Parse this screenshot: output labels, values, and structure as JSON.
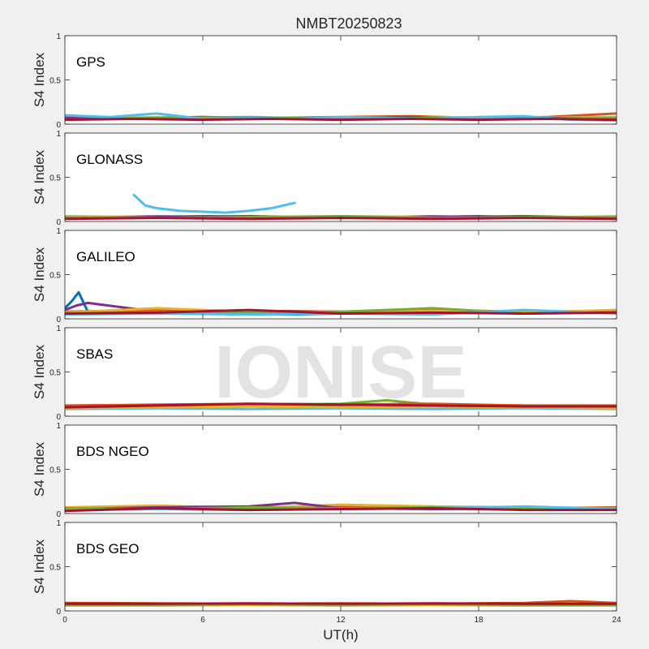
{
  "figure": {
    "title": "NMBT20250823",
    "xlabel": "UT(h)",
    "watermark": "IONISE",
    "background_color": "#f0f0f0",
    "axes_color": "#ffffff"
  },
  "chart_data": [
    {
      "type": "line",
      "panel_label": "GPS",
      "ylabel": "S4 Index",
      "xlim": [
        0,
        24
      ],
      "ylim": [
        0,
        1
      ],
      "xticks": [
        0,
        6,
        12,
        18,
        24
      ],
      "yticks": [
        0,
        0.5,
        1
      ],
      "grid": false,
      "series": [
        {
          "color": "#0072bd",
          "x": [
            0,
            2,
            4,
            6,
            8,
            10,
            12,
            14,
            16,
            18,
            20,
            22,
            24
          ],
          "y": [
            0.08,
            0.07,
            0.06,
            0.07,
            0.06,
            0.07,
            0.06,
            0.07,
            0.06,
            0.06,
            0.07,
            0.06,
            0.07
          ]
        },
        {
          "color": "#d95319",
          "x": [
            0,
            3,
            6,
            9,
            12,
            15,
            18,
            21,
            24
          ],
          "y": [
            0.09,
            0.07,
            0.08,
            0.07,
            0.08,
            0.09,
            0.07,
            0.08,
            0.12
          ]
        },
        {
          "color": "#edb120",
          "x": [
            0,
            4,
            8,
            12,
            16,
            20,
            24
          ],
          "y": [
            0.06,
            0.08,
            0.07,
            0.06,
            0.08,
            0.07,
            0.08
          ]
        },
        {
          "color": "#7e2f8e",
          "x": [
            0,
            3,
            6,
            9,
            12,
            15,
            18,
            21,
            24
          ],
          "y": [
            0.07,
            0.06,
            0.08,
            0.07,
            0.06,
            0.08,
            0.06,
            0.07,
            0.06
          ]
        },
        {
          "color": "#77ac30",
          "x": [
            0,
            4,
            8,
            12,
            16,
            20,
            24
          ],
          "y": [
            0.05,
            0.07,
            0.08,
            0.06,
            0.07,
            0.06,
            0.07
          ]
        },
        {
          "color": "#4dbeee",
          "x": [
            0,
            2,
            4,
            6,
            8,
            10,
            12,
            14,
            16,
            18,
            20,
            22,
            24
          ],
          "y": [
            0.1,
            0.08,
            0.12,
            0.06,
            0.07,
            0.06,
            0.08,
            0.07,
            0.06,
            0.08,
            0.09,
            0.05,
            0.04
          ]
        },
        {
          "color": "#a2142f",
          "x": [
            0,
            3,
            6,
            9,
            12,
            15,
            18,
            21,
            24
          ],
          "y": [
            0.05,
            0.06,
            0.05,
            0.06,
            0.05,
            0.06,
            0.05,
            0.06,
            0.05
          ]
        }
      ]
    },
    {
      "type": "line",
      "panel_label": "GLONASS",
      "ylabel": "S4 Index",
      "xlim": [
        0,
        24
      ],
      "ylim": [
        0,
        1
      ],
      "xticks": [
        0,
        6,
        12,
        18,
        24
      ],
      "yticks": [
        0,
        0.5,
        1
      ],
      "grid": false,
      "series": [
        {
          "color": "#4dbeee",
          "x": [
            3,
            3.5,
            4,
            5,
            6,
            7,
            8,
            9,
            10
          ],
          "y": [
            0.3,
            0.18,
            0.15,
            0.12,
            0.11,
            0.1,
            0.12,
            0.15,
            0.21
          ]
        },
        {
          "color": "#0072bd",
          "x": [
            0,
            3,
            6,
            9,
            12,
            15,
            18,
            21,
            24
          ],
          "y": [
            0.05,
            0.05,
            0.06,
            0.05,
            0.04,
            0.05,
            0.06,
            0.04,
            0.05
          ]
        },
        {
          "color": "#d95319",
          "x": [
            0,
            4,
            8,
            12,
            16,
            20,
            24
          ],
          "y": [
            0.04,
            0.06,
            0.05,
            0.04,
            0.06,
            0.04,
            0.05
          ]
        },
        {
          "color": "#edb120",
          "x": [
            0,
            4,
            8,
            12,
            16,
            20,
            24
          ],
          "y": [
            0.06,
            0.05,
            0.04,
            0.06,
            0.05,
            0.04,
            0.06
          ]
        },
        {
          "color": "#7e2f8e",
          "x": [
            0,
            4,
            8,
            12,
            16,
            20,
            24
          ],
          "y": [
            0.04,
            0.05,
            0.06,
            0.04,
            0.05,
            0.06,
            0.04
          ]
        },
        {
          "color": "#77ac30",
          "x": [
            0,
            4,
            8,
            12,
            16,
            20,
            24
          ],
          "y": [
            0.05,
            0.04,
            0.05,
            0.06,
            0.04,
            0.05,
            0.05
          ]
        },
        {
          "color": "#a2142f",
          "x": [
            0,
            4,
            8,
            12,
            16,
            20,
            24
          ],
          "y": [
            0.03,
            0.04,
            0.03,
            0.04,
            0.03,
            0.04,
            0.03
          ]
        }
      ]
    },
    {
      "type": "line",
      "panel_label": "GALILEO",
      "ylabel": "S4 Index",
      "xlim": [
        0,
        24
      ],
      "ylim": [
        0,
        1
      ],
      "xticks": [
        0,
        6,
        12,
        18,
        24
      ],
      "yticks": [
        0,
        0.5,
        1
      ],
      "grid": false,
      "series": [
        {
          "color": "#0072bd",
          "x": [
            0,
            0.3,
            0.6,
            1,
            2,
            4,
            6,
            8,
            10,
            12,
            14,
            16,
            18,
            20,
            22,
            24
          ],
          "y": [
            0.12,
            0.2,
            0.3,
            0.08,
            0.07,
            0.06,
            0.07,
            0.06,
            0.05,
            0.06,
            0.07,
            0.06,
            0.07,
            0.06,
            0.07,
            0.07
          ]
        },
        {
          "color": "#7e2f8e",
          "x": [
            0,
            0.5,
            1,
            4,
            8,
            12,
            16,
            20,
            24
          ],
          "y": [
            0.1,
            0.15,
            0.18,
            0.08,
            0.09,
            0.08,
            0.07,
            0.08,
            0.07
          ]
        },
        {
          "color": "#d95319",
          "x": [
            0,
            4,
            8,
            12,
            16,
            20,
            24
          ],
          "y": [
            0.08,
            0.1,
            0.09,
            0.08,
            0.1,
            0.08,
            0.09
          ]
        },
        {
          "color": "#edb120",
          "x": [
            0,
            4,
            8,
            12,
            16,
            20,
            24
          ],
          "y": [
            0.07,
            0.12,
            0.08,
            0.07,
            0.09,
            0.07,
            0.1
          ]
        },
        {
          "color": "#77ac30",
          "x": [
            0,
            4,
            8,
            12,
            16,
            20,
            24
          ],
          "y": [
            0.06,
            0.08,
            0.07,
            0.08,
            0.12,
            0.06,
            0.08
          ]
        },
        {
          "color": "#4dbeee",
          "x": [
            0,
            4,
            8,
            12,
            16,
            20,
            24
          ],
          "y": [
            0.05,
            0.06,
            0.05,
            0.06,
            0.05,
            0.1,
            0.06
          ]
        },
        {
          "color": "#a2142f",
          "x": [
            0,
            4,
            8,
            12,
            16,
            20,
            24
          ],
          "y": [
            0.06,
            0.07,
            0.1,
            0.06,
            0.07,
            0.06,
            0.07
          ]
        }
      ]
    },
    {
      "type": "line",
      "panel_label": "SBAS",
      "ylabel": "S4 Index",
      "xlim": [
        0,
        24
      ],
      "ylim": [
        0,
        1
      ],
      "xticks": [
        0,
        6,
        12,
        18,
        24
      ],
      "yticks": [
        0,
        0.5,
        1
      ],
      "grid": false,
      "series": [
        {
          "color": "#4dbeee",
          "x": [
            0,
            4,
            8,
            12,
            16,
            20,
            24
          ],
          "y": [
            0.08,
            0.09,
            0.08,
            0.09,
            0.08,
            0.09,
            0.08
          ]
        },
        {
          "color": "#0072bd",
          "x": [
            0,
            4,
            8,
            12,
            16,
            20,
            24
          ],
          "y": [
            0.1,
            0.11,
            0.12,
            0.11,
            0.12,
            0.11,
            0.1
          ]
        },
        {
          "color": "#77ac30",
          "x": [
            0,
            4,
            8,
            12,
            14,
            16,
            20,
            24
          ],
          "y": [
            0.11,
            0.12,
            0.13,
            0.14,
            0.18,
            0.13,
            0.12,
            0.11
          ]
        },
        {
          "color": "#edb120",
          "x": [
            0,
            4,
            8,
            12,
            16,
            20,
            24
          ],
          "y": [
            0.09,
            0.1,
            0.11,
            0.1,
            0.11,
            0.1,
            0.09
          ]
        },
        {
          "color": "#d95319",
          "x": [
            0,
            4,
            8,
            12,
            16,
            20,
            24
          ],
          "y": [
            0.12,
            0.13,
            0.14,
            0.13,
            0.14,
            0.12,
            0.12
          ]
        },
        {
          "color": "#a2142f",
          "x": [
            0,
            4,
            8,
            12,
            16,
            20,
            24
          ],
          "y": [
            0.1,
            0.12,
            0.14,
            0.13,
            0.12,
            0.11,
            0.11
          ]
        }
      ]
    },
    {
      "type": "line",
      "panel_label": "BDS NGEO",
      "ylabel": "S4 Index",
      "xlim": [
        0,
        24
      ],
      "ylim": [
        0,
        1
      ],
      "xticks": [
        0,
        6,
        12,
        18,
        24
      ],
      "yticks": [
        0,
        0.5,
        1
      ],
      "grid": false,
      "series": [
        {
          "color": "#0072bd",
          "x": [
            0,
            4,
            8,
            12,
            16,
            20,
            24
          ],
          "y": [
            0.05,
            0.06,
            0.05,
            0.06,
            0.05,
            0.06,
            0.05
          ]
        },
        {
          "color": "#d95319",
          "x": [
            0,
            4,
            8,
            12,
            16,
            20,
            24
          ],
          "y": [
            0.06,
            0.08,
            0.07,
            0.08,
            0.07,
            0.06,
            0.07
          ]
        },
        {
          "color": "#edb120",
          "x": [
            0,
            4,
            8,
            12,
            16,
            20,
            24
          ],
          "y": [
            0.07,
            0.09,
            0.06,
            0.1,
            0.08,
            0.07,
            0.06
          ]
        },
        {
          "color": "#7e2f8e",
          "x": [
            0,
            4,
            8,
            10,
            12,
            16,
            20,
            24
          ],
          "y": [
            0.05,
            0.07,
            0.08,
            0.12,
            0.06,
            0.05,
            0.06,
            0.05
          ]
        },
        {
          "color": "#77ac30",
          "x": [
            0,
            4,
            8,
            12,
            16,
            20,
            24
          ],
          "y": [
            0.06,
            0.05,
            0.07,
            0.06,
            0.07,
            0.05,
            0.06
          ]
        },
        {
          "color": "#4dbeee",
          "x": [
            0,
            4,
            8,
            12,
            16,
            20,
            24
          ],
          "y": [
            0.04,
            0.05,
            0.04,
            0.05,
            0.06,
            0.08,
            0.05
          ]
        },
        {
          "color": "#a2142f",
          "x": [
            0,
            4,
            8,
            12,
            16,
            20,
            24
          ],
          "y": [
            0.03,
            0.06,
            0.04,
            0.05,
            0.06,
            0.04,
            0.04
          ]
        }
      ]
    },
    {
      "type": "line",
      "panel_label": "BDS GEO",
      "ylabel": "S4 Index",
      "xlim": [
        0,
        24
      ],
      "ylim": [
        0,
        1
      ],
      "xticks": [
        0,
        6,
        12,
        18,
        24
      ],
      "yticks": [
        0,
        0.5,
        1
      ],
      "grid": false,
      "series": [
        {
          "color": "#edb120",
          "x": [
            0,
            4,
            8,
            12,
            16,
            20,
            24
          ],
          "y": [
            0.06,
            0.06,
            0.065,
            0.06,
            0.065,
            0.06,
            0.06
          ]
        },
        {
          "color": "#77ac30",
          "x": [
            0,
            4,
            8,
            12,
            16,
            20,
            24
          ],
          "y": [
            0.07,
            0.07,
            0.075,
            0.07,
            0.075,
            0.07,
            0.07
          ]
        },
        {
          "color": "#d95319",
          "x": [
            0,
            4,
            8,
            12,
            16,
            20,
            22,
            24
          ],
          "y": [
            0.09,
            0.085,
            0.08,
            0.085,
            0.08,
            0.09,
            0.11,
            0.09
          ]
        },
        {
          "color": "#a2142f",
          "x": [
            0,
            4,
            8,
            12,
            16,
            20,
            24
          ],
          "y": [
            0.08,
            0.08,
            0.085,
            0.08,
            0.085,
            0.08,
            0.08
          ]
        }
      ]
    }
  ]
}
